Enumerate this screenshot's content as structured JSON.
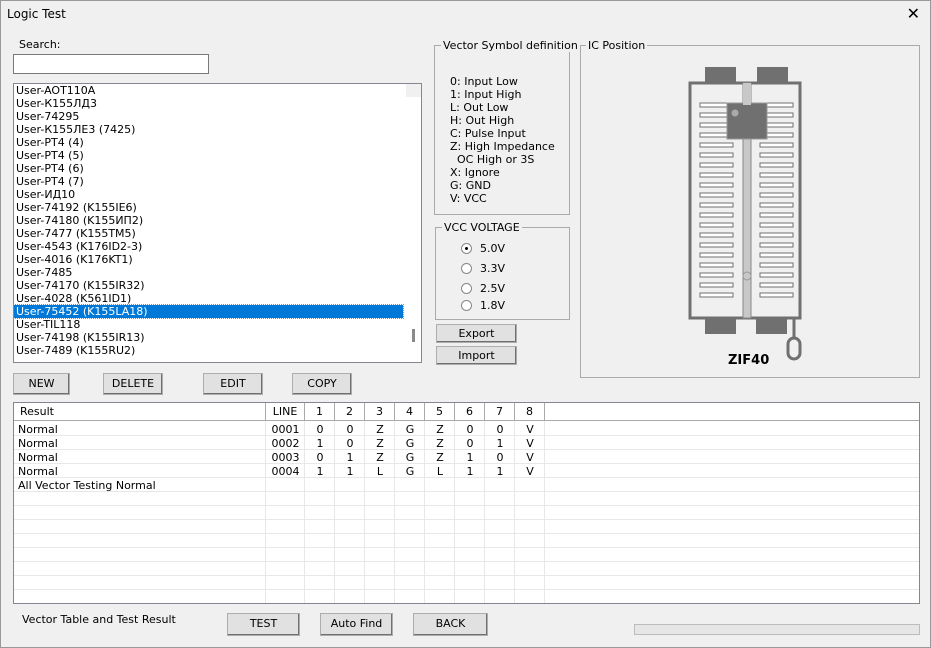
{
  "window": {
    "title": "Logic Test",
    "close_icon": "close-icon"
  },
  "search": {
    "label": "Search:",
    "value": "",
    "placeholder": ""
  },
  "devices": {
    "items": [
      "User-AOT110A",
      "User-К155ЛД3",
      "User-74295",
      "User-К155ЛЕ3 (7425)",
      "User-PT4 (4)",
      "User-PT4 (5)",
      "User-PT4 (6)",
      "User-PT4 (7)",
      "User-ИД10",
      "User-74192 (K155IE6)",
      "User-74180 (K155ИП2)",
      "User-7477 (K155TM5)",
      "User-4543 (K176ID2-3)",
      "User-4016 (K176KT1)",
      "User-7485",
      "User-74170 (K155IR32)",
      "User-4028 (K561ID1)",
      "User-75452 (K155LA18)",
      "User-TIL118",
      "User-74198 (K155IR13)",
      "User-7489 (K155RU2)"
    ],
    "selected_index": 17
  },
  "list_buttons": {
    "new": "NEW",
    "delete": "DELETE",
    "edit": "EDIT",
    "copy": "COPY"
  },
  "vector_symbols": {
    "title": "Vector Symbol definition",
    "lines": [
      "0: Input Low",
      "1: Input High",
      "L: Out Low",
      "H: Out High",
      "C: Pulse Input",
      "Z: High Impedance",
      "  OC High or 3S",
      "X: Ignore",
      "G: GND",
      "V: VCC"
    ]
  },
  "vcc": {
    "title": "VCC VOLTAGE",
    "options": [
      "5.0V",
      "3.3V",
      "2.5V",
      "1.8V"
    ],
    "selected": "5.0V"
  },
  "io_buttons": {
    "export": "Export",
    "import": "Import"
  },
  "ic_position": {
    "title": "IC Position",
    "socket_label": "ZIF40"
  },
  "table": {
    "headers": [
      "Result",
      "LINE",
      "1",
      "2",
      "3",
      "4",
      "5",
      "6",
      "7",
      "8"
    ],
    "rows": [
      [
        "Normal",
        "0001",
        "0",
        "0",
        "Z",
        "G",
        "Z",
        "0",
        "0",
        "V"
      ],
      [
        "Normal",
        "0002",
        "1",
        "0",
        "Z",
        "G",
        "Z",
        "0",
        "1",
        "V"
      ],
      [
        "Normal",
        "0003",
        "0",
        "1",
        "Z",
        "G",
        "Z",
        "1",
        "0",
        "V"
      ],
      [
        "Normal",
        "0004",
        "1",
        "1",
        "L",
        "G",
        "L",
        "1",
        "1",
        "V"
      ],
      [
        "All Vector Testing Normal",
        "",
        "",
        "",
        "",
        "",
        "",
        "",
        "",
        ""
      ]
    ]
  },
  "footer": {
    "label": "Vector Table and Test Result",
    "test": "TEST",
    "auto_find": "Auto Find",
    "back": "BACK",
    "progress": 0
  }
}
